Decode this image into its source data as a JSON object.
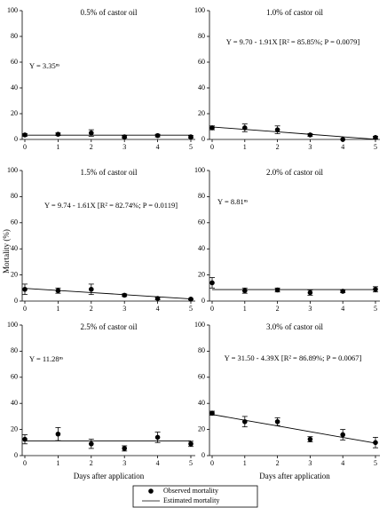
{
  "ylabel": "Mortality (%)",
  "legend": [
    "Observed mortality",
    "Estimated mortality"
  ],
  "chart_data": [
    {
      "type": "scatter",
      "title": "0.5% of castor oil",
      "annotation": "Y = 3.35ⁿˢ",
      "x": [
        0,
        1,
        2,
        3,
        4,
        5
      ],
      "xlim": [
        0,
        5
      ],
      "xticks": [
        0,
        1,
        2,
        3,
        4,
        5
      ],
      "ylim": [
        0,
        100
      ],
      "yticks": [
        0,
        20,
        40,
        60,
        80,
        100
      ],
      "series": [
        {
          "color": "#000000",
          "values": [
            3.5,
            4,
            5,
            2,
            3,
            2
          ],
          "errors": [
            1,
            1,
            2.5,
            1,
            1,
            1
          ]
        },
        {
          "color": "#000000",
          "values": [
            3.35,
            3.35,
            3.35,
            3.35,
            3.35,
            3.35
          ]
        }
      ]
    },
    {
      "type": "scatter",
      "title": "1.0% of castor oil",
      "annotation": "Y = 9.70 - 1.91X [R² = 85.85%; P = 0.0079]",
      "x": [
        0,
        1,
        2,
        3,
        4,
        5
      ],
      "xlim": [
        0,
        5
      ],
      "xticks": [
        0,
        1,
        2,
        3,
        4,
        5
      ],
      "ylim": [
        0,
        100
      ],
      "yticks": [
        0,
        20,
        40,
        60,
        80,
        100
      ],
      "series": [
        {
          "color": "#000000",
          "values": [
            9,
            9,
            7.5,
            3.5,
            0,
            1.5
          ],
          "errors": [
            1.5,
            3,
            3,
            1,
            0,
            1
          ]
        },
        {
          "color": "#000000",
          "values": [
            9.7,
            7.79,
            5.88,
            3.97,
            2.06,
            0.15
          ]
        }
      ]
    },
    {
      "type": "scatter",
      "title": "1.5% of castor oil",
      "annotation": "Y = 9.74 - 1.61X [R² = 82.74%; P = 0.0119]",
      "x": [
        0,
        1,
        2,
        3,
        4,
        5
      ],
      "xlim": [
        0,
        5
      ],
      "xticks": [
        0,
        1,
        2,
        3,
        4,
        5
      ],
      "ylim": [
        0,
        100
      ],
      "yticks": [
        0,
        20,
        40,
        60,
        80,
        100
      ],
      "series": [
        {
          "color": "#000000",
          "values": [
            9,
            8,
            9,
            4.5,
            2,
            1.5
          ],
          "errors": [
            4,
            2,
            4,
            1,
            1,
            0.5
          ]
        },
        {
          "color": "#000000",
          "values": [
            9.74,
            8.13,
            6.52,
            4.91,
            3.3,
            1.69
          ]
        }
      ]
    },
    {
      "type": "scatter",
      "title": "2.0% of castor oil",
      "annotation": "Y = 8.81ⁿˢ",
      "x": [
        0,
        1,
        2,
        3,
        4,
        5
      ],
      "xlim": [
        0,
        5
      ],
      "xticks": [
        0,
        1,
        2,
        3,
        4,
        5
      ],
      "ylim": [
        0,
        100
      ],
      "yticks": [
        0,
        20,
        40,
        60,
        80,
        100
      ],
      "series": [
        {
          "color": "#000000",
          "values": [
            14,
            8,
            8.5,
            6.5,
            7.5,
            9
          ],
          "errors": [
            4,
            2,
            1.5,
            2,
            1,
            2
          ]
        },
        {
          "color": "#000000",
          "values": [
            8.81,
            8.81,
            8.81,
            8.81,
            8.81,
            8.81
          ]
        }
      ]
    },
    {
      "type": "scatter",
      "title": "2.5% of castor oil",
      "annotation": "Y = 11.28ⁿˢ",
      "xlabel": "Days after application",
      "x": [
        0,
        1,
        2,
        3,
        4,
        5
      ],
      "xlim": [
        0,
        5
      ],
      "xticks": [
        0,
        1,
        2,
        3,
        4,
        5
      ],
      "ylim": [
        0,
        100
      ],
      "yticks": [
        0,
        20,
        40,
        60,
        80,
        100
      ],
      "series": [
        {
          "color": "#000000",
          "values": [
            12.5,
            16.5,
            9,
            5.5,
            14,
            9
          ],
          "errors": [
            3.5,
            5,
            3.5,
            2,
            4,
            2
          ]
        },
        {
          "color": "#000000",
          "values": [
            11.28,
            11.28,
            11.28,
            11.28,
            11.28,
            11.28
          ]
        }
      ]
    },
    {
      "type": "scatter",
      "title": "3.0% of castor oil",
      "annotation": "Y = 31.50 - 4.39X [R² = 86.89%; P = 0.0067]",
      "xlabel": "Days after application",
      "x": [
        0,
        1,
        2,
        3,
        4,
        5
      ],
      "xlim": [
        0,
        5
      ],
      "xticks": [
        0,
        1,
        2,
        3,
        4,
        5
      ],
      "ylim": [
        0,
        100
      ],
      "yticks": [
        0,
        20,
        40,
        60,
        80,
        100
      ],
      "series": [
        {
          "color": "#000000",
          "values": [
            32.5,
            26,
            26,
            12.5,
            16,
            10
          ],
          "errors": [
            1.5,
            4,
            3,
            2,
            4,
            4
          ]
        },
        {
          "color": "#000000",
          "values": [
            31.5,
            27.11,
            22.72,
            18.33,
            13.94,
            9.55
          ]
        }
      ]
    }
  ]
}
